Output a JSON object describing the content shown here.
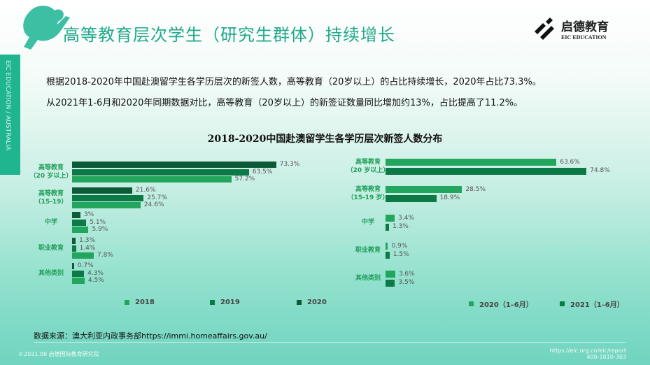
{
  "header": {
    "title": "高等教育层次学生（研究生群体）持续增长",
    "side_band": "EIC EDUCATION / AUSTRALIA",
    "logo_cn": "启德教育",
    "logo_en": "EIC EDUCATION"
  },
  "description": [
    "根据2018-2020年中国赴澳留学生各学历层次的新签人数，高等教育（20岁以上）的占比持续增长，2020年占比73.3%。",
    "从2021年1-6月和2020年同期数据对比，高等教育（20岁以上）的新签证数量同比增加约13%，占比提高了11.2%。"
  ],
  "colors": {
    "dark": "#0c5a38",
    "mid": "#0b7a46",
    "light": "#22a55c"
  },
  "chart_data": [
    {
      "type": "bar",
      "orientation": "horizontal",
      "title": "2018-2020中国赴澳留学生各学历层次新签人数分布",
      "categories": [
        [
          "高等教育",
          "（20 岁以上）"
        ],
        [
          "高等教育",
          "（15-19）"
        ],
        [
          "中学"
        ],
        [
          "职业教育"
        ],
        [
          "其他类别"
        ]
      ],
      "series_order_in_group": [
        "2020",
        "2019",
        "2018"
      ],
      "series": [
        {
          "name": "2020",
          "color": "#0c5a38",
          "values": [
            73.3,
            21.6,
            3,
            1.3,
            0.7
          ],
          "labels": [
            "73.3%",
            "21.6%",
            "3%",
            "1.3%",
            "0.7%"
          ]
        },
        {
          "name": "2019",
          "color": "#0b7a46",
          "values": [
            63.5,
            25.7,
            5.1,
            1.4,
            4.3
          ],
          "labels": [
            "63.5%",
            "25.7%",
            "5.1%",
            "1.4%",
            "4.3%"
          ]
        },
        {
          "name": "2018",
          "color": "#22a55c",
          "values": [
            57.2,
            24.6,
            5.9,
            7.8,
            4.5
          ],
          "labels": [
            "57.2%",
            "24.6%",
            "5.9%",
            "7.8%",
            "4.5%"
          ]
        }
      ],
      "legend": [
        "2018",
        "2019",
        "2020"
      ],
      "legend_position": "bottom",
      "unit": "%"
    },
    {
      "type": "bar",
      "orientation": "horizontal",
      "categories": [
        [
          "高等教育",
          "（20 岁以上）"
        ],
        [
          "高等教育",
          "（15-19 岁）"
        ],
        [
          "中学"
        ],
        [
          "职业教育"
        ],
        [
          "其他类别"
        ]
      ],
      "series": [
        {
          "name": "2020（1–6月）",
          "color": "#22a55c",
          "values": [
            63.6,
            28.5,
            3.4,
            0.9,
            3.6
          ],
          "labels": [
            "63.6%",
            "28.5%",
            "3.4%",
            "0.9%",
            "3.6%"
          ]
        },
        {
          "name": "2021（1–6月）",
          "color": "#0b7a46",
          "values": [
            74.8,
            18.9,
            1.3,
            1.5,
            3.5
          ],
          "labels": [
            "74.8%",
            "18.9%",
            "1.3%",
            "1.5%",
            "3.5%"
          ]
        }
      ],
      "legend": [
        "2020（1–6月）",
        "2021（1–6月）"
      ],
      "legend_position": "bottom",
      "unit": "%"
    }
  ],
  "footer": {
    "source": "数据来源：澳大利亚内政事务部https://immi.homeaffairs.gov.au/",
    "copyright": "©2021.08 启德国际教育研究院",
    "url": "https://eic.org.cn/eic/report",
    "phone": "400-1010-303"
  }
}
